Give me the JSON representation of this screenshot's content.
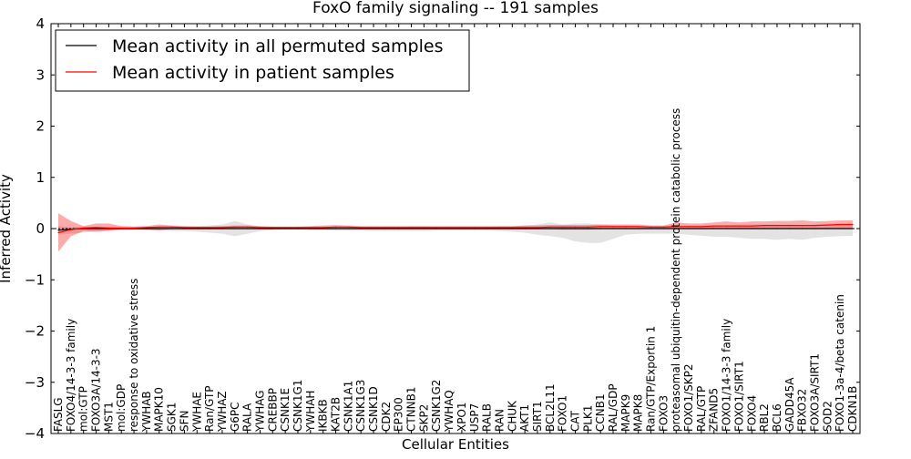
{
  "chart_data": {
    "type": "line",
    "title": "FoxO family signaling -- 191 samples",
    "xlabel": "Cellular Entities",
    "ylabel": "Inferred Activity",
    "ylim": [
      -4,
      4
    ],
    "yticks": [
      4,
      3,
      2,
      1,
      0,
      -1,
      -2,
      -3,
      -4
    ],
    "ytick_labels": [
      "4",
      "3",
      "2",
      "1",
      "0",
      "−1",
      "−2",
      "−3",
      "−4"
    ],
    "legend_position": "top-left",
    "legend": [
      {
        "label": "Mean activity in all permuted samples",
        "color": "#000000"
      },
      {
        "label": "Mean activity in patient samples",
        "color": "#ff0000"
      }
    ],
    "categories": [
      "FASLG",
      "FOXO4/14-3-3 family",
      "mol:GTP",
      "FOXO3A/14-3-3",
      "MST1",
      "mol:GDP",
      "response to oxidative stress",
      "YWHAB",
      "MAPK10",
      "SGK1",
      "SFN",
      "YWHAE",
      "Ran/GTP",
      "YWHAZ",
      "G6PC",
      "RALA",
      "YWHAG",
      "CREBBP",
      "CSNK1E",
      "CSNK1G1",
      "YWHAH",
      "IKBKB",
      "KAT2B",
      "CSNK1A1",
      "CSNK1G3",
      "CSNK1D",
      "CDK2",
      "EP300",
      "CTNNB1",
      "SKP2",
      "CSNK1G2",
      "YWHAQ",
      "XPO1",
      "USP7",
      "RALB",
      "RAN",
      "CHUK",
      "AKT1",
      "SIRT1",
      "BCL2L11",
      "FOXO1",
      "CAT",
      "PLK1",
      "CCNB1",
      "RAL/GDP",
      "MAPK9",
      "MAPK8",
      "Ran/GTP/Exportin 1",
      "FOXO3",
      "proteasomal ubiquitin-dependent protein catabolic process",
      "FOXO1/SKP2",
      "RAL/GTP",
      "ZFAND5",
      "FOXO1/14-3-3 family",
      "FOXO1/SIRT1",
      "FOXO4",
      "RBL2",
      "BCL6",
      "GADD45A",
      "FBXO32",
      "FOXO3A/SIRT1",
      "SOD2",
      "FOXO1-3a-4/beta catenin",
      "CDKN1B"
    ],
    "series": [
      {
        "name": "Mean activity in all permuted samples",
        "color": "#000000",
        "values": [
          -0.03,
          -0.01,
          0,
          0,
          0,
          0,
          0,
          0,
          0,
          0,
          0,
          0,
          0,
          0,
          0,
          0,
          0,
          0,
          0,
          0,
          0,
          0,
          0,
          0,
          0,
          0,
          0,
          0,
          0,
          0,
          0,
          0,
          0,
          0,
          0,
          0,
          0,
          0,
          0,
          0,
          0,
          0,
          0,
          0,
          0,
          0,
          0,
          0,
          0,
          0,
          0,
          0,
          0,
          0,
          0,
          0,
          0,
          0,
          0,
          0,
          0,
          0,
          0,
          0
        ],
        "upper": [
          0.05,
          0.03,
          0.04,
          0.03,
          0.03,
          0.02,
          0.02,
          0.03,
          0.04,
          0.04,
          0.04,
          0.05,
          0.06,
          0.08,
          0.15,
          0.08,
          0.04,
          0.03,
          0.02,
          0.02,
          0.03,
          0.03,
          0.04,
          0.03,
          0.03,
          0.03,
          0.03,
          0.03,
          0.04,
          0.04,
          0.03,
          0.03,
          0.03,
          0.03,
          0.03,
          0.04,
          0.04,
          0.06,
          0.08,
          0.12,
          0.08,
          0.1,
          0.1,
          0.08,
          0.06,
          0.06,
          0.05,
          0.05,
          0.05,
          0.06,
          0.06,
          0.06,
          0.07,
          0.07,
          0.08,
          0.08,
          0.08,
          0.08,
          0.08,
          0.07,
          0.08,
          0.08,
          0.08,
          0.08
        ],
        "lower": [
          -0.12,
          -0.1,
          -0.08,
          -0.06,
          -0.05,
          -0.04,
          -0.03,
          -0.03,
          -0.04,
          -0.05,
          -0.05,
          -0.06,
          -0.08,
          -0.1,
          -0.15,
          -0.1,
          -0.05,
          -0.03,
          -0.02,
          -0.02,
          -0.03,
          -0.03,
          -0.04,
          -0.04,
          -0.04,
          -0.05,
          -0.05,
          -0.05,
          -0.05,
          -0.05,
          -0.04,
          -0.04,
          -0.04,
          -0.04,
          -0.04,
          -0.05,
          -0.06,
          -0.08,
          -0.12,
          -0.15,
          -0.18,
          -0.25,
          -0.28,
          -0.28,
          -0.2,
          -0.12,
          -0.1,
          -0.1,
          -0.1,
          -0.1,
          -0.12,
          -0.14,
          -0.16,
          -0.16,
          -0.18,
          -0.2,
          -0.2,
          -0.22,
          -0.2,
          -0.22,
          -0.18,
          -0.16,
          -0.15,
          -0.14
        ]
      },
      {
        "name": "Mean activity in patient samples",
        "color": "#ff0000",
        "values": [
          -0.08,
          -0.02,
          0.01,
          0.02,
          0.01,
          0.01,
          0.01,
          0.02,
          0.03,
          0.03,
          0.02,
          0.02,
          0.02,
          0.02,
          0.03,
          0.03,
          0.02,
          0.02,
          0.02,
          0.02,
          0.02,
          0.02,
          0.03,
          0.03,
          0.02,
          0.02,
          0.02,
          0.02,
          0.02,
          0.02,
          0.02,
          0.02,
          0.02,
          0.02,
          0.02,
          0.02,
          0.02,
          0.02,
          0.02,
          0.03,
          0.03,
          0.03,
          0.03,
          0.04,
          0.04,
          0.04,
          0.04,
          0.03,
          0.03,
          0.04,
          0.04,
          0.04,
          0.05,
          0.05,
          0.05,
          0.05,
          0.06,
          0.06,
          0.06,
          0.06,
          0.06,
          0.07,
          0.08,
          0.08
        ],
        "upper": [
          0.3,
          0.15,
          0.05,
          0.1,
          0.1,
          0.05,
          0.04,
          0.05,
          0.08,
          0.06,
          0.05,
          0.04,
          0.04,
          0.05,
          0.06,
          0.06,
          0.05,
          0.04,
          0.04,
          0.04,
          0.05,
          0.06,
          0.07,
          0.06,
          0.05,
          0.05,
          0.05,
          0.05,
          0.05,
          0.05,
          0.05,
          0.05,
          0.05,
          0.05,
          0.05,
          0.05,
          0.05,
          0.06,
          0.06,
          0.07,
          0.07,
          0.07,
          0.07,
          0.08,
          0.08,
          0.08,
          0.08,
          0.06,
          0.06,
          0.12,
          0.1,
          0.1,
          0.12,
          0.14,
          0.12,
          0.14,
          0.14,
          0.15,
          0.15,
          0.16,
          0.14,
          0.15,
          0.16,
          0.16
        ],
        "lower": [
          -0.45,
          -0.15,
          -0.05,
          -0.06,
          -0.04,
          -0.01,
          -0.01,
          -0.02,
          -0.03,
          -0.01,
          -0.01,
          -0.01,
          -0.01,
          -0.01,
          -0.01,
          -0.01,
          -0.01,
          -0.01,
          0,
          0,
          -0.01,
          -0.01,
          -0.01,
          -0.01,
          -0.01,
          -0.01,
          -0.01,
          -0.01,
          -0.01,
          -0.01,
          -0.01,
          -0.01,
          -0.01,
          -0.01,
          -0.01,
          -0.01,
          -0.01,
          -0.01,
          -0.01,
          -0.01,
          -0.02,
          -0.02,
          -0.02,
          -0.01,
          0,
          0,
          0,
          0,
          0,
          0,
          0,
          0,
          0,
          0,
          0,
          0,
          0,
          0,
          0,
          0,
          0,
          0,
          0,
          0
        ]
      }
    ]
  }
}
